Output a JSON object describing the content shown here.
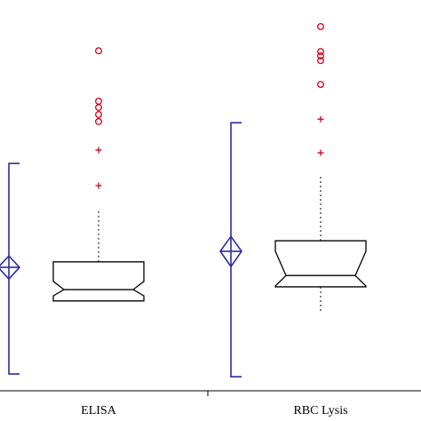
{
  "chart_data": {
    "type": "box",
    "categories": [
      "ELISA",
      "RBC Lysis"
    ],
    "ylim": [
      0,
      100
    ],
    "box_color": "#000000",
    "outlier_color": "#d0021b",
    "mean_color": "#2b2e9c",
    "boxes": [
      {
        "q1": 23,
        "median": 25.9,
        "q3": 33,
        "notch": [
          24.3,
          28
        ],
        "whisker_low": 23,
        "whisker_high": 46.1,
        "outliers_circle": [
          87,
          74.1,
          72.5,
          70.7,
          68.9
        ],
        "outliers_plus": [
          61.6,
          52.5
        ]
      },
      {
        "q1": 26.6,
        "median": 29.5,
        "q3": 38.4,
        "notch": [
          26.8,
          35.7
        ],
        "whisker_low": 20,
        "whisker_high": 55.2,
        "outliers_circle": [
          93.2,
          86.8,
          85.7,
          84.5,
          78.4
        ],
        "outliers_plus": [
          69.5,
          60.9
        ]
      }
    ],
    "means": [
      {
        "mean": 31.6,
        "ci": [
          28.6,
          34.5
        ],
        "range": [
          4.3,
          58.2
        ]
      },
      {
        "mean": 35.7,
        "ci": [
          31.8,
          39.5
        ],
        "range": [
          3.6,
          68.6
        ]
      }
    ]
  }
}
